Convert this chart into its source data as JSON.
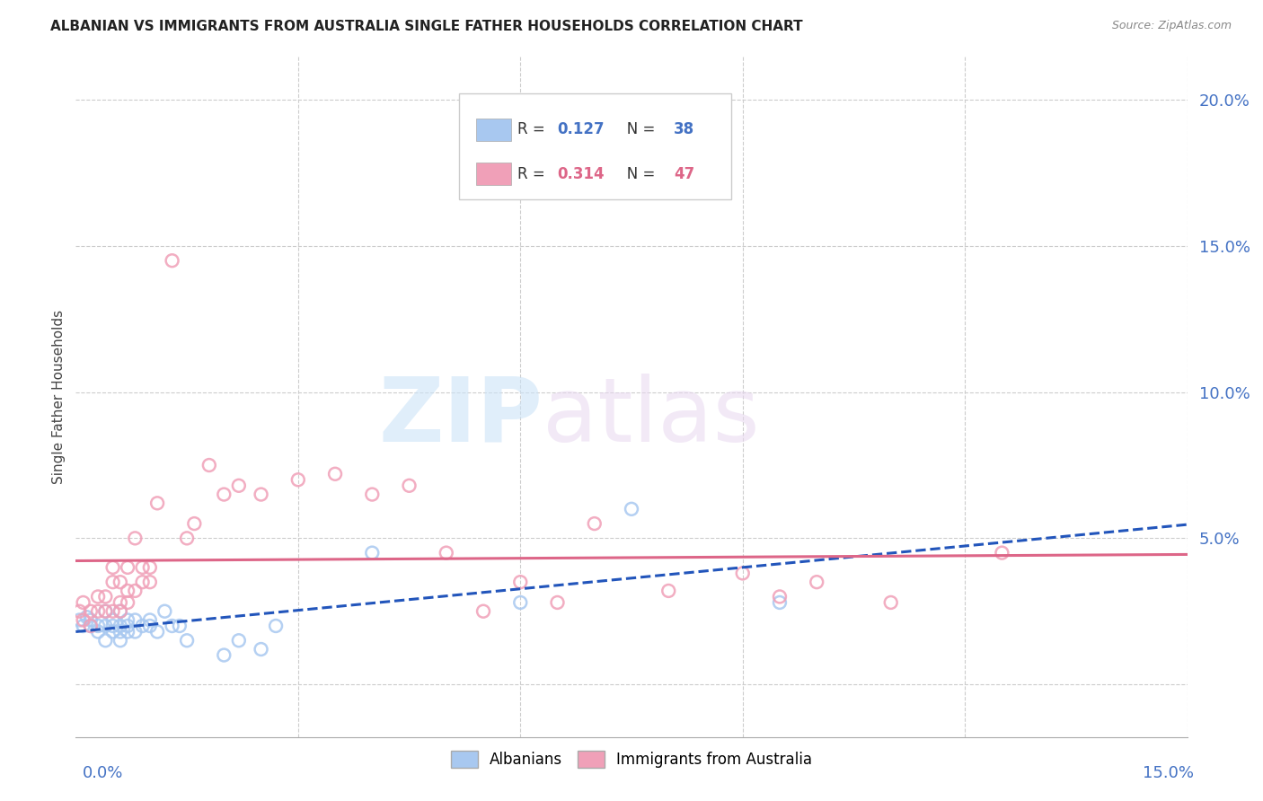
{
  "title": "ALBANIAN VS IMMIGRANTS FROM AUSTRALIA SINGLE FATHER HOUSEHOLDS CORRELATION CHART",
  "source": "Source: ZipAtlas.com",
  "ylabel": "Single Father Households",
  "yticks": [
    0.0,
    0.05,
    0.1,
    0.15,
    0.2
  ],
  "ytick_labels": [
    "",
    "5.0%",
    "10.0%",
    "15.0%",
    "20.0%"
  ],
  "xlim": [
    0.0,
    0.15
  ],
  "ylim": [
    -0.018,
    0.215
  ],
  "albanian_color": "#a8c8f0",
  "australia_color": "#f0a0b8",
  "albanian_line_color": "#2255bb",
  "australia_line_color": "#dd6688",
  "background_color": "#ffffff",
  "grid_color": "#cccccc",
  "r1": "0.127",
  "n1": "38",
  "r2": "0.314",
  "n2": "47",
  "albanian_x": [
    0.0005,
    0.001,
    0.0015,
    0.002,
    0.002,
    0.003,
    0.003,
    0.004,
    0.004,
    0.004,
    0.005,
    0.005,
    0.005,
    0.006,
    0.006,
    0.006,
    0.006,
    0.007,
    0.007,
    0.007,
    0.008,
    0.008,
    0.009,
    0.01,
    0.01,
    0.011,
    0.012,
    0.013,
    0.014,
    0.015,
    0.02,
    0.022,
    0.025,
    0.027,
    0.04,
    0.06,
    0.075,
    0.095
  ],
  "albanian_y": [
    0.022,
    0.02,
    0.023,
    0.02,
    0.022,
    0.018,
    0.02,
    0.015,
    0.02,
    0.025,
    0.018,
    0.02,
    0.022,
    0.015,
    0.018,
    0.02,
    0.025,
    0.018,
    0.02,
    0.022,
    0.018,
    0.022,
    0.02,
    0.02,
    0.022,
    0.018,
    0.025,
    0.02,
    0.02,
    0.015,
    0.01,
    0.015,
    0.012,
    0.02,
    0.045,
    0.028,
    0.06,
    0.028
  ],
  "australia_x": [
    0.0005,
    0.001,
    0.001,
    0.002,
    0.002,
    0.003,
    0.003,
    0.004,
    0.004,
    0.005,
    0.005,
    0.005,
    0.006,
    0.006,
    0.006,
    0.007,
    0.007,
    0.007,
    0.008,
    0.008,
    0.009,
    0.009,
    0.01,
    0.01,
    0.011,
    0.013,
    0.015,
    0.016,
    0.018,
    0.02,
    0.022,
    0.025,
    0.03,
    0.035,
    0.04,
    0.045,
    0.05,
    0.055,
    0.06,
    0.065,
    0.07,
    0.08,
    0.09,
    0.095,
    0.1,
    0.11,
    0.125
  ],
  "australia_y": [
    0.025,
    0.022,
    0.028,
    0.02,
    0.025,
    0.025,
    0.03,
    0.025,
    0.03,
    0.025,
    0.035,
    0.04,
    0.025,
    0.028,
    0.035,
    0.028,
    0.032,
    0.04,
    0.032,
    0.05,
    0.035,
    0.04,
    0.035,
    0.04,
    0.062,
    0.145,
    0.05,
    0.055,
    0.075,
    0.065,
    0.068,
    0.065,
    0.07,
    0.072,
    0.065,
    0.068,
    0.045,
    0.025,
    0.035,
    0.028,
    0.055,
    0.032,
    0.038,
    0.03,
    0.035,
    0.028,
    0.045
  ]
}
